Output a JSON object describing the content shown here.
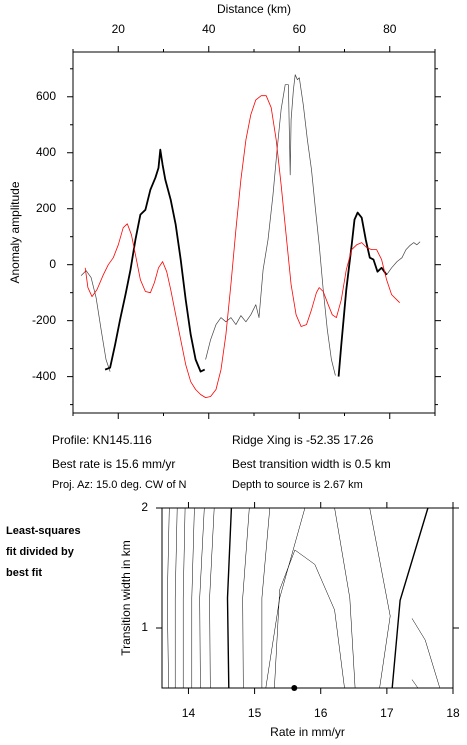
{
  "chart_data": [
    {
      "type": "line",
      "x_label": "Distance (km)",
      "y_label": "Anomaly amplitude",
      "xlim": [
        10,
        90
      ],
      "ylim": [
        -530,
        760
      ],
      "xticks": [
        20,
        40,
        60,
        80
      ],
      "yticks": [
        -400,
        -200,
        0,
        200,
        400,
        600
      ],
      "xminor": [
        10,
        30,
        50,
        70,
        90
      ],
      "yminor": [
        -500,
        -300,
        -100,
        100,
        300,
        500,
        700
      ],
      "series": [
        {
          "color": "#444444",
          "width": 0.7,
          "x": [
            11.8,
            12.9,
            14.0,
            15.1,
            16.2,
            17.3,
            18.2,
            28.0,
            39.3,
            40.4,
            41.6,
            42.7,
            43.8,
            44.9,
            46.0,
            47.1,
            48.2,
            49.3,
            50.4,
            51.1,
            52.0,
            53.1,
            54.2,
            55.1,
            56.0,
            56.9,
            57.6,
            58.0,
            58.2,
            58.7,
            59.1,
            59.6,
            60.0,
            60.9,
            61.8,
            62.7,
            63.6,
            64.4,
            65.3,
            66.2,
            67.1,
            68.0,
            74.0,
            79.3,
            80.4,
            81.6,
            82.7,
            83.6,
            84.4,
            85.3,
            86.0,
            86.7
          ],
          "values": [
            -39,
            -21,
            -46,
            -118,
            -232,
            -339,
            -382,
            null,
            -339,
            -268,
            -214,
            -189,
            -204,
            -189,
            -214,
            -182,
            -204,
            -179,
            -143,
            -189,
            -18,
            89,
            250,
            411,
            554,
            643,
            643,
            321,
            518,
            625,
            679,
            661,
            668,
            571,
            446,
            339,
            196,
            71,
            -89,
            -232,
            -339,
            -396,
            null,
            -36,
            -11,
            11,
            25,
            54,
            68,
            79,
            71,
            82
          ]
        },
        {
          "color": "#000000",
          "width": 1.8,
          "x": [
            17.1,
            18.2,
            19.3,
            20.4,
            21.6,
            22.7,
            23.8,
            24.9,
            26.0,
            27.1,
            28.2,
            28.9,
            29.3,
            29.8,
            30.4,
            31.6,
            32.7,
            33.8,
            34.9,
            36.0,
            37.1,
            38.2,
            39.1,
            50.0,
            68.7,
            69.3,
            70.4,
            71.6,
            72.2,
            72.9,
            73.8,
            74.7,
            75.6,
            76.4,
            77.3,
            78.2,
            79.3
          ],
          "values": [
            -375,
            -368,
            -286,
            -196,
            -107,
            -18,
            89,
            179,
            196,
            268,
            311,
            346,
            411,
            357,
            304,
            232,
            143,
            18,
            -125,
            -250,
            -339,
            -382,
            -375,
            null,
            -400,
            -286,
            -89,
            71,
            161,
            186,
            168,
            89,
            25,
            18,
            -25,
            -11,
            -36
          ]
        },
        {
          "color": "#ff0000",
          "width": 0.8,
          "x": [
            12.7,
            13.3,
            14.2,
            15.3,
            16.7,
            17.8,
            18.9,
            20.0,
            21.1,
            22.0,
            22.9,
            23.8,
            24.9,
            26.0,
            27.1,
            28.0,
            28.9,
            29.8,
            30.7,
            31.6,
            32.7,
            33.8,
            34.9,
            36.0,
            37.1,
            38.2,
            39.3,
            40.4,
            41.6,
            42.7,
            43.8,
            44.9,
            46.0,
            47.1,
            48.2,
            49.3,
            50.4,
            51.6,
            52.7,
            53.8,
            54.9,
            56.0,
            57.1,
            58.2,
            59.3,
            60.4,
            61.6,
            62.7,
            63.8,
            64.4,
            65.3,
            66.4,
            67.3,
            68.2,
            69.3,
            70.4,
            71.6,
            72.7,
            73.8,
            74.9,
            76.0,
            77.1,
            78.2,
            79.3,
            80.4,
            82.2
          ],
          "values": [
            -11,
            -82,
            -114,
            -89,
            -36,
            0,
            25,
            71,
            132,
            146,
            107,
            36,
            -54,
            -96,
            -100,
            -64,
            -11,
            11,
            -25,
            -89,
            -179,
            -268,
            -357,
            -418,
            -446,
            -464,
            -475,
            -471,
            -446,
            -375,
            -250,
            -71,
            125,
            304,
            446,
            536,
            589,
            604,
            604,
            561,
            446,
            286,
            107,
            -71,
            -179,
            -221,
            -214,
            -161,
            -100,
            -82,
            -96,
            -143,
            -179,
            -189,
            -125,
            -18,
            54,
            71,
            79,
            61,
            54,
            54,
            18,
            -54,
            -107,
            -136
          ]
        }
      ],
      "annotations": [
        "Profile: KN145.116",
        "Best rate is 15.6 mm/yr",
        "Proj. Az: 15.0 deg. CW of N",
        "Ridge Xing is -52.35 17.26",
        "Best transition width is 0.5 km",
        "Depth to source is   2.67 km"
      ]
    },
    {
      "type": "contour",
      "x_label": "Rate in mm/yr",
      "y_label": "Transition width in km",
      "side_label": [
        "Least-squares",
        "fit divided by",
        "best fit"
      ],
      "xlim": [
        13.6,
        18
      ],
      "ylim": [
        0.5,
        2
      ],
      "xticks": [
        14,
        15,
        16,
        17,
        18
      ],
      "yticks": [
        1,
        2
      ],
      "contours": [
        {
          "x": [
            13.71,
            13.68,
            13.7
          ],
          "y": [
            2,
            1.25,
            0.5
          ],
          "bold": false
        },
        {
          "x": [
            13.83,
            13.8,
            13.8
          ],
          "y": [
            2,
            1.25,
            0.5
          ],
          "bold": false
        },
        {
          "x": [
            13.95,
            13.92,
            13.92
          ],
          "y": [
            2,
            1.25,
            0.5
          ],
          "bold": false
        },
        {
          "x": [
            14.09,
            14.05,
            14.05
          ],
          "y": [
            2,
            1.25,
            0.5
          ],
          "bold": false
        },
        {
          "x": [
            14.24,
            14.17,
            14.18
          ],
          "y": [
            2,
            1.25,
            0.5
          ],
          "bold": false
        },
        {
          "x": [
            14.39,
            14.32,
            14.33
          ],
          "y": [
            2,
            1.25,
            0.5
          ],
          "bold": false
        },
        {
          "x": [
            14.65,
            14.59,
            14.61
          ],
          "y": [
            2,
            1.25,
            0.5
          ],
          "bold": true
        },
        {
          "x": [
            14.92,
            14.82,
            14.83
          ],
          "y": [
            2,
            1.25,
            0.5
          ],
          "bold": false
        },
        {
          "x": [
            15.23,
            15.11,
            15.11
          ],
          "y": [
            2,
            1.25,
            0.5
          ],
          "bold": false
        },
        {
          "x": [
            15.76,
            15.38,
            15.17
          ],
          "y": [
            2,
            1.25,
            0.5
          ],
          "bold": false
        },
        {
          "x": [
            15.3,
            15.38,
            15.61,
            15.91,
            16.21,
            16.36
          ],
          "y": [
            0.5,
            1.32,
            1.65,
            1.53,
            1.15,
            0.5
          ],
          "bold": false
        },
        {
          "x": [
            16.21,
            16.44,
            16.52
          ],
          "y": [
            2,
            1.25,
            0.5
          ],
          "bold": false
        },
        {
          "x": [
            16.74,
            17.05,
            16.89
          ],
          "y": [
            2,
            1.1,
            0.5
          ],
          "bold": false
        },
        {
          "x": [
            17.62,
            17.2,
            17.08
          ],
          "y": [
            2,
            1.23,
            0.5
          ],
          "bold": true
        },
        {
          "x": [
            17.38,
            17.58,
            17.8
          ],
          "y": [
            1.08,
            0.9,
            0.5
          ],
          "bold": false
        },
        {
          "x": [
            17.38,
            17.47
          ],
          "y": [
            0.57,
            0.5
          ],
          "bold": false
        }
      ],
      "best": {
        "x": 15.6,
        "y": 0.5
      }
    }
  ]
}
